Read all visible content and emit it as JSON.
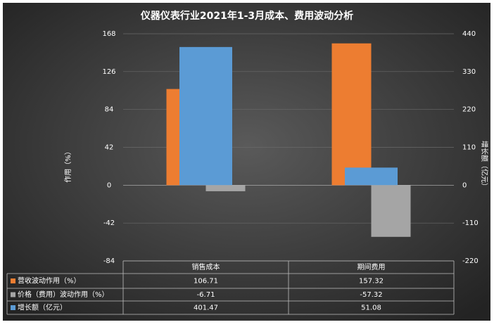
{
  "chart_data": {
    "type": "bar",
    "title": "仪器仪表行业2021年1-3月成本、费用波动分析",
    "categories": [
      "销售成本",
      "期间费用"
    ],
    "y_label": "作用（%）",
    "y2_label": "增长额（亿元）",
    "series": [
      {
        "name": "营收波动作用（%）",
        "color": "#ed7d31",
        "values": [
          106.71,
          157.32
        ]
      },
      {
        "name": "价格（费用）波动作用（%）",
        "color": "#a5a5a5",
        "values": [
          -6.71,
          -57.32
        ]
      },
      {
        "name": "增长额（亿元）",
        "color": "#5b9bd5",
        "values": [
          401.47,
          51.08
        ],
        "axis": "y2"
      }
    ],
    "ylim": [
      -84,
      168
    ],
    "yticks": [
      -84,
      -42,
      0,
      42,
      84,
      126,
      168
    ],
    "y2lim": [
      -220,
      440
    ],
    "y2ticks": [
      -220,
      -110,
      0,
      110,
      220,
      330,
      440
    ],
    "grid": true
  }
}
